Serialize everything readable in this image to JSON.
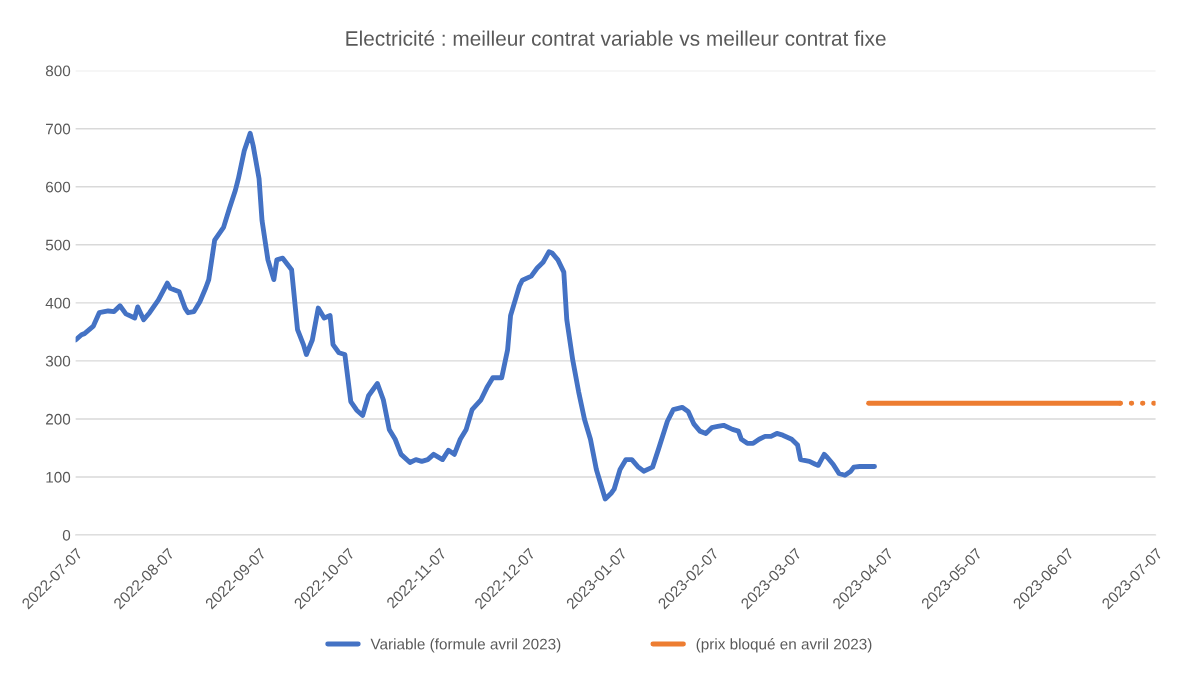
{
  "chart_data": {
    "type": "line",
    "title": "Electricité : meilleur contrat variable vs meilleur contrat fixe",
    "series": [
      {
        "name": "Variable (formule avril 2023)",
        "color": "#4472c4",
        "line_style": "solid",
        "x": [
          "2022-07-07",
          "2022-07-09",
          "2022-07-10",
          "2022-07-13",
          "2022-07-15",
          "2022-07-18",
          "2022-07-20",
          "2022-07-22",
          "2022-07-24",
          "2022-07-27",
          "2022-07-28",
          "2022-07-30",
          "2022-08-01",
          "2022-08-04",
          "2022-08-07",
          "2022-08-08",
          "2022-08-11",
          "2022-08-13",
          "2022-08-14",
          "2022-08-16",
          "2022-08-18",
          "2022-08-20",
          "2022-08-21",
          "2022-08-23",
          "2022-08-26",
          "2022-08-28",
          "2022-08-30",
          "2022-08-31",
          "2022-09-02",
          "2022-09-04",
          "2022-09-05",
          "2022-09-07",
          "2022-09-08",
          "2022-09-10",
          "2022-09-12",
          "2022-09-13",
          "2022-09-15",
          "2022-09-18",
          "2022-09-20",
          "2022-09-22",
          "2022-09-23",
          "2022-09-25",
          "2022-09-27",
          "2022-09-29",
          "2022-10-01",
          "2022-10-02",
          "2022-10-04",
          "2022-10-06",
          "2022-10-08",
          "2022-10-10",
          "2022-10-12",
          "2022-10-14",
          "2022-10-17",
          "2022-10-19",
          "2022-10-21",
          "2022-10-23",
          "2022-10-25",
          "2022-10-28",
          "2022-10-30",
          "2022-11-01",
          "2022-11-03",
          "2022-11-05",
          "2022-11-08",
          "2022-11-10",
          "2022-11-12",
          "2022-11-14",
          "2022-11-16",
          "2022-11-18",
          "2022-11-21",
          "2022-11-23",
          "2022-11-25",
          "2022-11-28",
          "2022-11-30",
          "2022-12-01",
          "2022-12-04",
          "2022-12-05",
          "2022-12-08",
          "2022-12-10",
          "2022-12-12",
          "2022-12-14",
          "2022-12-15",
          "2022-12-17",
          "2022-12-19",
          "2022-12-20",
          "2022-12-22",
          "2022-12-24",
          "2022-12-26",
          "2022-12-28",
          "2022-12-30",
          "2023-01-01",
          "2023-01-02",
          "2023-01-04",
          "2023-01-05",
          "2023-01-07",
          "2023-01-09",
          "2023-01-11",
          "2023-01-13",
          "2023-01-15",
          "2023-01-18",
          "2023-01-20",
          "2023-01-23",
          "2023-01-25",
          "2023-01-28",
          "2023-01-30",
          "2023-02-01",
          "2023-02-03",
          "2023-02-05",
          "2023-02-07",
          "2023-02-09",
          "2023-02-11",
          "2023-02-14",
          "2023-02-16",
          "2023-02-17",
          "2023-02-19",
          "2023-02-21",
          "2023-02-23",
          "2023-02-25",
          "2023-02-27",
          "2023-03-01",
          "2023-03-03",
          "2023-03-06",
          "2023-03-08",
          "2023-03-09",
          "2023-03-12",
          "2023-03-14",
          "2023-03-15",
          "2023-03-17",
          "2023-03-18",
          "2023-03-20",
          "2023-03-22",
          "2023-03-24",
          "2023-03-26",
          "2023-03-27",
          "2023-03-29",
          "2023-04-03"
        ],
        "values": [
          336,
          345,
          347,
          360,
          383,
          386,
          385,
          395,
          381,
          374,
          393,
          371,
          383,
          405,
          434,
          425,
          419,
          391,
          383,
          385,
          402,
          426,
          440,
          508,
          530,
          563,
          594,
          614,
          662,
          692,
          671,
          614,
          542,
          474,
          440,
          474,
          477,
          457,
          354,
          328,
          311,
          336,
          391,
          374,
          378,
          328,
          314,
          311,
          230,
          215,
          206,
          240,
          261,
          233,
          182,
          165,
          139,
          125,
          130,
          127,
          130,
          139,
          130,
          146,
          139,
          165,
          182,
          216,
          233,
          254,
          271,
          271,
          319,
          378,
          429,
          439,
          446,
          460,
          470,
          488,
          486,
          474,
          453,
          371,
          302,
          247,
          199,
          165,
          113,
          79,
          62,
          72,
          79,
          113,
          130,
          130,
          118,
          110,
          117,
          148,
          196,
          216,
          220,
          213,
          191,
          179,
          175,
          185,
          187,
          189,
          182,
          179,
          165,
          158,
          158,
          165,
          170,
          170,
          175,
          172,
          165,
          155,
          130,
          127,
          122,
          120,
          139,
          134,
          122,
          106,
          103,
          110,
          117,
          118,
          118
        ]
      },
      {
        "name": "(prix bloqué en avril 2023)",
        "color": "#ed7d31",
        "line_style": "solid",
        "x": [
          "2023-04-01",
          "2023-06-25"
        ],
        "values": [
          227,
          227
        ]
      },
      {
        "color": "#ed7d31",
        "line_style": "dotted",
        "x": [
          "2023-06-25",
          "2023-07-07"
        ],
        "values": [
          227,
          227
        ]
      }
    ],
    "xlim": [
      "2022-07-07",
      "2023-07-07"
    ],
    "xticks": [
      "2022-07-07",
      "2022-08-07",
      "2022-09-07",
      "2022-10-07",
      "2022-11-07",
      "2022-12-07",
      "2023-01-07",
      "2023-02-07",
      "2023-03-07",
      "2023-04-07",
      "2023-05-07",
      "2023-06-07",
      "2023-07-07"
    ],
    "ylim": [
      0,
      800
    ],
    "yticks": [
      0,
      100,
      200,
      300,
      400,
      500,
      600,
      700,
      800
    ],
    "grid": "y",
    "legend": "bottom"
  }
}
